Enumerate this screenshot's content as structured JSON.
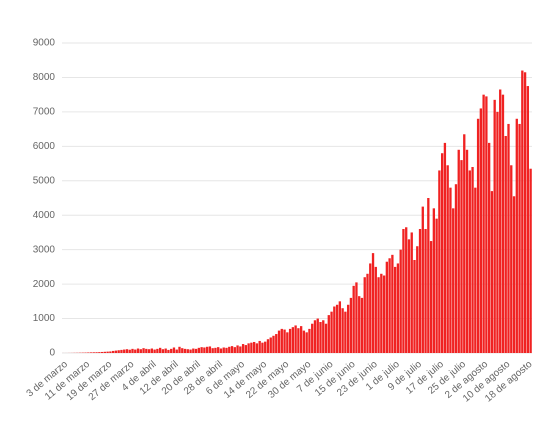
{
  "chart_data": {
    "type": "bar",
    "color": "#f02222",
    "grid": true,
    "ylim": [
      0,
      9000
    ],
    "yticks": [
      0,
      1000,
      2000,
      3000,
      4000,
      5000,
      6000,
      7000,
      8000,
      9000
    ],
    "categories": [
      "3 de marzo",
      null,
      null,
      null,
      null,
      null,
      null,
      null,
      "11 de marzo",
      null,
      null,
      null,
      null,
      null,
      null,
      null,
      "19 de marzo",
      null,
      null,
      null,
      null,
      null,
      null,
      null,
      "27 de marzo",
      null,
      null,
      null,
      null,
      null,
      null,
      null,
      "4 de abril",
      null,
      null,
      null,
      null,
      null,
      null,
      null,
      "12 de abril",
      null,
      null,
      null,
      null,
      null,
      null,
      null,
      "20 de abril",
      null,
      null,
      null,
      null,
      null,
      null,
      null,
      "28 de abril",
      null,
      null,
      null,
      null,
      null,
      null,
      null,
      "6 de mayo",
      null,
      null,
      null,
      null,
      null,
      null,
      null,
      "14 de mayo",
      null,
      null,
      null,
      null,
      null,
      null,
      null,
      "22 de mayo",
      null,
      null,
      null,
      null,
      null,
      null,
      null,
      "30 de mayo",
      null,
      null,
      null,
      null,
      null,
      null,
      null,
      "7 de junio",
      null,
      null,
      null,
      null,
      null,
      null,
      null,
      "15 de junio",
      null,
      null,
      null,
      null,
      null,
      null,
      null,
      "23 de junio",
      null,
      null,
      null,
      null,
      null,
      null,
      null,
      "1 de julio",
      null,
      null,
      null,
      null,
      null,
      null,
      null,
      "9 de julio",
      null,
      null,
      null,
      null,
      null,
      null,
      null,
      "17 de julio",
      null,
      null,
      null,
      null,
      null,
      null,
      null,
      "25 de julio",
      null,
      null,
      null,
      null,
      null,
      null,
      null,
      "2 de agosto",
      null,
      null,
      null,
      null,
      null,
      null,
      null,
      "10 de agosto",
      null,
      null,
      null,
      null,
      null,
      null,
      null,
      "18 de agosto",
      null
    ],
    "values": [
      1,
      1,
      2,
      3,
      5,
      6,
      8,
      10,
      12,
      15,
      18,
      20,
      22,
      25,
      30,
      35,
      40,
      45,
      60,
      70,
      80,
      90,
      100,
      110,
      95,
      120,
      100,
      130,
      110,
      140,
      120,
      110,
      130,
      100,
      120,
      150,
      110,
      130,
      90,
      120,
      160,
      100,
      180,
      140,
      120,
      110,
      100,
      130,
      120,
      150,
      170,
      160,
      180,
      190,
      140,
      150,
      170,
      130,
      160,
      150,
      180,
      200,
      170,
      220,
      190,
      260,
      230,
      280,
      300,
      320,
      280,
      350,
      300,
      330,
      400,
      450,
      500,
      550,
      650,
      700,
      680,
      600,
      700,
      750,
      800,
      720,
      780,
      650,
      600,
      700,
      850,
      950,
      1000,
      900,
      950,
      850,
      1100,
      1200,
      1350,
      1400,
      1500,
      1300,
      1200,
      1400,
      1600,
      1950,
      2050,
      1650,
      1600,
      2200,
      2300,
      2600,
      2900,
      2500,
      2200,
      2300,
      2250,
      2650,
      2750,
      2850,
      2500,
      2600,
      3000,
      3600,
      3650,
      3300,
      3500,
      2700,
      3100,
      3600,
      4250,
      3600,
      4500,
      3250,
      4200,
      3900,
      5300,
      5800,
      6100,
      5450,
      4800,
      4200,
      4900,
      5900,
      5600,
      6350,
      5900,
      5300,
      5400,
      4800,
      6800,
      7100,
      7500,
      7450,
      6100,
      4700,
      7350,
      7000,
      7650,
      7500,
      6300,
      6650,
      5450,
      4550,
      6800,
      6650,
      8200,
      8150,
      7750,
      5350
    ]
  }
}
